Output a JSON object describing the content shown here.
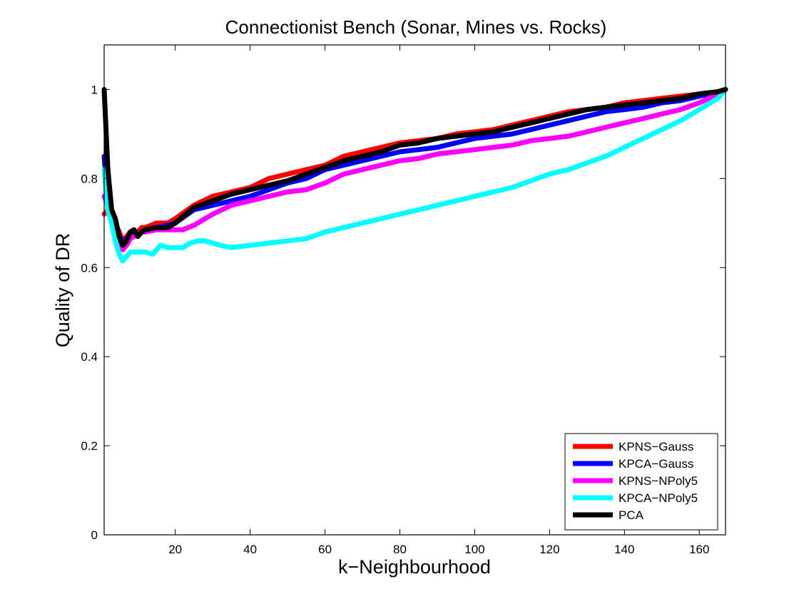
{
  "chart_data": {
    "type": "line",
    "title": "Connectionist Bench (Sonar, Mines vs. Rocks)",
    "xlabel": "k−Neighbourhood",
    "ylabel": "Quality of DR",
    "xlim": [
      1,
      167
    ],
    "ylim": [
      0,
      1.1
    ],
    "xticks": [
      20,
      40,
      60,
      80,
      100,
      120,
      140,
      160
    ],
    "yticks": [
      0,
      0.2,
      0.4,
      0.6,
      0.8,
      1
    ],
    "ytick_labels": [
      "0",
      "0.2",
      "0.4",
      "0.6",
      "0.8",
      "1"
    ],
    "grid": false,
    "legend_position": "bottom-right",
    "series": [
      {
        "name": "KPNS−Gauss",
        "color": "#ff0000",
        "points": [
          [
            1,
            0.72
          ],
          [
            2,
            0.73
          ],
          [
            3,
            0.72
          ],
          [
            4,
            0.7
          ],
          [
            5,
            0.68
          ],
          [
            6,
            0.66
          ],
          [
            7,
            0.67
          ],
          [
            8,
            0.68
          ],
          [
            9,
            0.68
          ],
          [
            10,
            0.68
          ],
          [
            11,
            0.69
          ],
          [
            12,
            0.69
          ],
          [
            15,
            0.7
          ],
          [
            18,
            0.7
          ],
          [
            20,
            0.71
          ],
          [
            25,
            0.74
          ],
          [
            30,
            0.76
          ],
          [
            35,
            0.77
          ],
          [
            40,
            0.78
          ],
          [
            45,
            0.8
          ],
          [
            50,
            0.81
          ],
          [
            55,
            0.82
          ],
          [
            60,
            0.83
          ],
          [
            65,
            0.85
          ],
          [
            70,
            0.86
          ],
          [
            75,
            0.87
          ],
          [
            80,
            0.88
          ],
          [
            85,
            0.885
          ],
          [
            90,
            0.89
          ],
          [
            95,
            0.9
          ],
          [
            100,
            0.905
          ],
          [
            105,
            0.91
          ],
          [
            110,
            0.92
          ],
          [
            115,
            0.93
          ],
          [
            120,
            0.94
          ],
          [
            125,
            0.95
          ],
          [
            130,
            0.955
          ],
          [
            135,
            0.96
          ],
          [
            140,
            0.97
          ],
          [
            145,
            0.975
          ],
          [
            150,
            0.98
          ],
          [
            155,
            0.985
          ],
          [
            160,
            0.99
          ],
          [
            165,
            0.995
          ],
          [
            167,
            1.0
          ]
        ]
      },
      {
        "name": "KPCA−Gauss",
        "color": "#0000ff",
        "points": [
          [
            1,
            0.85
          ],
          [
            2,
            0.75
          ],
          [
            3,
            0.71
          ],
          [
            4,
            0.69
          ],
          [
            5,
            0.67
          ],
          [
            6,
            0.66
          ],
          [
            7,
            0.665
          ],
          [
            8,
            0.67
          ],
          [
            9,
            0.675
          ],
          [
            10,
            0.675
          ],
          [
            11,
            0.68
          ],
          [
            12,
            0.685
          ],
          [
            15,
            0.69
          ],
          [
            18,
            0.695
          ],
          [
            20,
            0.7
          ],
          [
            25,
            0.73
          ],
          [
            30,
            0.74
          ],
          [
            35,
            0.75
          ],
          [
            40,
            0.76
          ],
          [
            45,
            0.775
          ],
          [
            50,
            0.79
          ],
          [
            55,
            0.8
          ],
          [
            60,
            0.82
          ],
          [
            65,
            0.83
          ],
          [
            70,
            0.84
          ],
          [
            75,
            0.85
          ],
          [
            80,
            0.86
          ],
          [
            85,
            0.865
          ],
          [
            90,
            0.87
          ],
          [
            95,
            0.88
          ],
          [
            100,
            0.89
          ],
          [
            105,
            0.895
          ],
          [
            110,
            0.9
          ],
          [
            115,
            0.91
          ],
          [
            120,
            0.92
          ],
          [
            125,
            0.93
          ],
          [
            130,
            0.94
          ],
          [
            135,
            0.95
          ],
          [
            140,
            0.955
          ],
          [
            145,
            0.96
          ],
          [
            150,
            0.97
          ],
          [
            155,
            0.975
          ],
          [
            160,
            0.985
          ],
          [
            165,
            0.995
          ],
          [
            167,
            1.0
          ]
        ]
      },
      {
        "name": "KPNS−NPoly5",
        "color": "#ff00ff",
        "points": [
          [
            1,
            0.76
          ],
          [
            2,
            0.74
          ],
          [
            3,
            0.72
          ],
          [
            4,
            0.69
          ],
          [
            5,
            0.66
          ],
          [
            6,
            0.64
          ],
          [
            7,
            0.65
          ],
          [
            8,
            0.665
          ],
          [
            9,
            0.67
          ],
          [
            10,
            0.675
          ],
          [
            11,
            0.68
          ],
          [
            12,
            0.68
          ],
          [
            15,
            0.685
          ],
          [
            18,
            0.685
          ],
          [
            20,
            0.685
          ],
          [
            22,
            0.685
          ],
          [
            25,
            0.695
          ],
          [
            30,
            0.72
          ],
          [
            35,
            0.74
          ],
          [
            40,
            0.75
          ],
          [
            45,
            0.76
          ],
          [
            50,
            0.77
          ],
          [
            55,
            0.775
          ],
          [
            60,
            0.79
          ],
          [
            65,
            0.81
          ],
          [
            70,
            0.82
          ],
          [
            75,
            0.83
          ],
          [
            80,
            0.84
          ],
          [
            85,
            0.845
          ],
          [
            90,
            0.855
          ],
          [
            95,
            0.86
          ],
          [
            100,
            0.865
          ],
          [
            105,
            0.87
          ],
          [
            110,
            0.875
          ],
          [
            115,
            0.885
          ],
          [
            120,
            0.89
          ],
          [
            125,
            0.895
          ],
          [
            130,
            0.905
          ],
          [
            135,
            0.915
          ],
          [
            140,
            0.925
          ],
          [
            145,
            0.935
          ],
          [
            150,
            0.945
          ],
          [
            155,
            0.955
          ],
          [
            160,
            0.97
          ],
          [
            165,
            0.99
          ],
          [
            167,
            1.0
          ]
        ]
      },
      {
        "name": "KPCA−NPoly5",
        "color": "#00ffff",
        "points": [
          [
            1,
            0.82
          ],
          [
            2,
            0.73
          ],
          [
            3,
            0.7
          ],
          [
            4,
            0.66
          ],
          [
            5,
            0.63
          ],
          [
            6,
            0.615
          ],
          [
            7,
            0.625
          ],
          [
            8,
            0.635
          ],
          [
            10,
            0.635
          ],
          [
            12,
            0.635
          ],
          [
            14,
            0.63
          ],
          [
            16,
            0.65
          ],
          [
            18,
            0.645
          ],
          [
            20,
            0.645
          ],
          [
            22,
            0.645
          ],
          [
            24,
            0.655
          ],
          [
            26,
            0.66
          ],
          [
            28,
            0.66
          ],
          [
            30,
            0.655
          ],
          [
            32,
            0.65
          ],
          [
            35,
            0.645
          ],
          [
            40,
            0.65
          ],
          [
            45,
            0.655
          ],
          [
            50,
            0.66
          ],
          [
            55,
            0.665
          ],
          [
            60,
            0.68
          ],
          [
            65,
            0.69
          ],
          [
            70,
            0.7
          ],
          [
            75,
            0.71
          ],
          [
            80,
            0.72
          ],
          [
            85,
            0.73
          ],
          [
            90,
            0.74
          ],
          [
            95,
            0.75
          ],
          [
            100,
            0.76
          ],
          [
            105,
            0.77
          ],
          [
            110,
            0.78
          ],
          [
            115,
            0.795
          ],
          [
            120,
            0.81
          ],
          [
            125,
            0.82
          ],
          [
            130,
            0.835
          ],
          [
            135,
            0.85
          ],
          [
            140,
            0.87
          ],
          [
            145,
            0.89
          ],
          [
            150,
            0.91
          ],
          [
            155,
            0.93
          ],
          [
            160,
            0.955
          ],
          [
            165,
            0.98
          ],
          [
            167,
            1.0
          ]
        ]
      },
      {
        "name": "PCA",
        "color": "#000000",
        "points": [
          [
            1,
            1.0
          ],
          [
            2,
            0.82
          ],
          [
            3,
            0.73
          ],
          [
            4,
            0.71
          ],
          [
            5,
            0.67
          ],
          [
            6,
            0.65
          ],
          [
            7,
            0.66
          ],
          [
            8,
            0.68
          ],
          [
            9,
            0.685
          ],
          [
            10,
            0.67
          ],
          [
            11,
            0.68
          ],
          [
            12,
            0.685
          ],
          [
            15,
            0.69
          ],
          [
            18,
            0.69
          ],
          [
            20,
            0.7
          ],
          [
            25,
            0.735
          ],
          [
            30,
            0.75
          ],
          [
            35,
            0.765
          ],
          [
            40,
            0.775
          ],
          [
            45,
            0.785
          ],
          [
            50,
            0.795
          ],
          [
            55,
            0.81
          ],
          [
            60,
            0.825
          ],
          [
            65,
            0.84
          ],
          [
            70,
            0.85
          ],
          [
            75,
            0.86
          ],
          [
            80,
            0.875
          ],
          [
            85,
            0.88
          ],
          [
            90,
            0.89
          ],
          [
            95,
            0.895
          ],
          [
            100,
            0.9
          ],
          [
            105,
            0.905
          ],
          [
            110,
            0.915
          ],
          [
            115,
            0.925
          ],
          [
            120,
            0.935
          ],
          [
            125,
            0.945
          ],
          [
            130,
            0.955
          ],
          [
            135,
            0.96
          ],
          [
            140,
            0.965
          ],
          [
            145,
            0.97
          ],
          [
            150,
            0.975
          ],
          [
            155,
            0.98
          ],
          [
            160,
            0.99
          ],
          [
            165,
            0.995
          ],
          [
            167,
            1.0
          ]
        ]
      }
    ]
  }
}
